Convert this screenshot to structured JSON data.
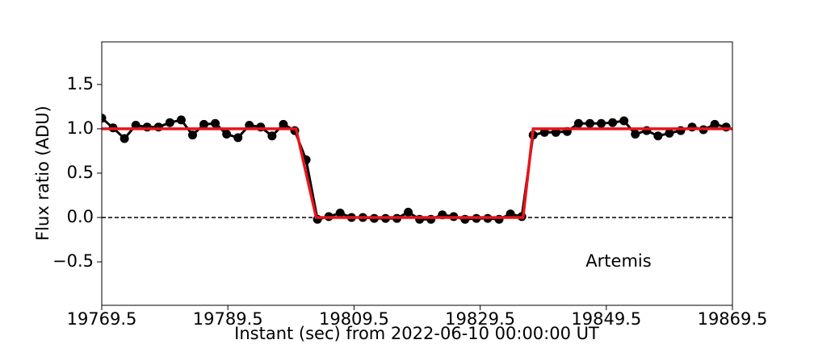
{
  "chart_data": {
    "type": "line",
    "xlabel": "Instant (sec) from 2022-06-10 00:00:00 UT",
    "ylabel": "Flux ratio (ADU)",
    "annotation": "Artemis",
    "xlim": [
      19769.5,
      19869.5
    ],
    "ylim": [
      -0.99,
      1.98
    ],
    "xticks": [
      19769.5,
      19789.5,
      19809.5,
      19829.5,
      19849.5,
      19869.5
    ],
    "yticks": [
      {
        "value": -0.5,
        "label": "−0.5"
      },
      {
        "value": 0,
        "label": "0.0"
      },
      0.5,
      {
        "value": 1,
        "label": "1.0"
      },
      1.5
    ],
    "hline": 0,
    "series": [
      {
        "color": "#000000",
        "markers": true,
        "x": [
          19769.5,
          19771.3,
          19773.1,
          19774.9,
          19776.7,
          19778.5,
          19780.3,
          19782.1,
          19783.9,
          19785.7,
          19787.5,
          19789.3,
          19791.1,
          19792.9,
          19794.7,
          19796.5,
          19798.3,
          19800.1,
          19801.9,
          19803.7,
          19805.5,
          19807.3,
          19809.1,
          19810.9,
          19812.7,
          19814.5,
          19816.3,
          19818.1,
          19819.9,
          19821.7,
          19823.5,
          19825.3,
          19827.1,
          19828.9,
          19830.7,
          19832.5,
          19834.3,
          19836.1,
          19837.9,
          19839.7,
          19841.5,
          19843.3,
          19845.1,
          19846.9,
          19848.7,
          19850.5,
          19852.3,
          19854.1,
          19855.9,
          19857.7,
          19859.5,
          19861.3,
          19863.1,
          19864.9,
          19866.7,
          19868.5
        ],
        "values": [
          1.12,
          1.01,
          0.89,
          1.04,
          1.02,
          1.02,
          1.07,
          1.1,
          0.93,
          1.05,
          1.06,
          0.94,
          0.9,
          1.04,
          1.02,
          0.92,
          1.05,
          0.98,
          0.65,
          -0.02,
          0.01,
          0.05,
          0.0,
          0.0,
          -0.01,
          -0.01,
          -0.01,
          0.06,
          -0.02,
          -0.02,
          0.03,
          0.01,
          -0.02,
          -0.01,
          -0.01,
          -0.02,
          0.04,
          0.01,
          0.93,
          0.96,
          0.96,
          0.97,
          1.06,
          1.06,
          1.06,
          1.07,
          1.09,
          0.94,
          0.98,
          0.92,
          0.95,
          0.98,
          1.02,
          0.99,
          1.05,
          1.02
        ]
      },
      {
        "color": "#e8141c",
        "markers": false,
        "x": [
          19769.5,
          19800.3,
          19803.5,
          19836.3,
          19837.9,
          19869.5
        ],
        "values": [
          1,
          1,
          0,
          0,
          1,
          1
        ]
      }
    ]
  }
}
